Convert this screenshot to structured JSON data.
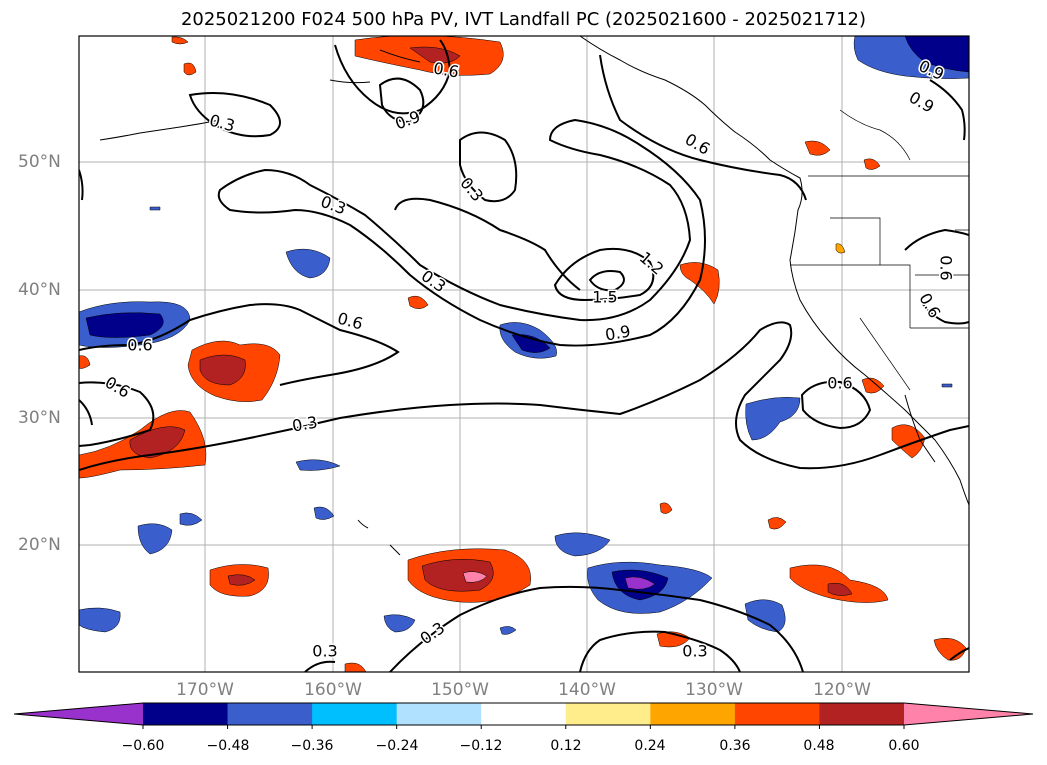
{
  "title": "2025021200 F024 500 hPa PV, IVT Landfall PC (2025021600 - 2025021712)",
  "lat_labels": [
    "50°N",
    "40°N",
    "30°N",
    "20°N"
  ],
  "lon_labels": [
    "170°W",
    "160°W",
    "150°W",
    "140°W",
    "130°W",
    "120°W"
  ],
  "contour_labels": [
    "0.6",
    "0.9",
    "0.3",
    "0.3",
    "0.3",
    "0.6",
    "0.9",
    "0.3",
    "0.6",
    "1.2",
    "1.5",
    "0.9",
    "0.6",
    "0.3",
    "0.3",
    "0.9",
    "0.6",
    "0.6",
    "0.6",
    "0.3",
    "0.3",
    "0.6"
  ],
  "colorbar": {
    "ticks": [
      "−0.60",
      "−0.48",
      "−0.36",
      "−0.24",
      "−0.12",
      "0.12",
      "0.24",
      "0.36",
      "0.48",
      "0.60"
    ],
    "colors": [
      "#9932cc",
      "#00008b",
      "#3a5fcd",
      "#00bfff",
      "#b0e2ff",
      "#ffffff",
      "#ffec8b",
      "#ffa500",
      "#ff4500",
      "#b22222",
      "#ff82ab"
    ]
  }
}
